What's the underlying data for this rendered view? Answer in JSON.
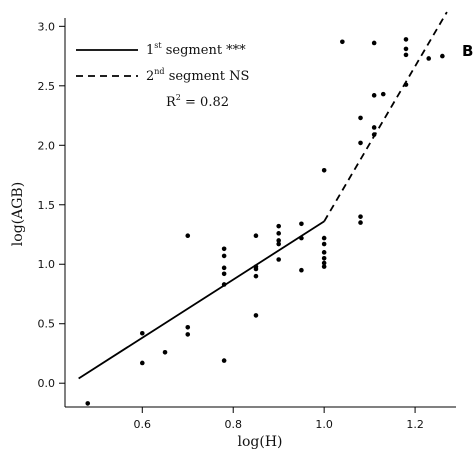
{
  "chart_data": {
    "type": "scatter",
    "panel_label": "B",
    "xlabel": "log(H)",
    "ylabel": "log(AGB)",
    "xlim": [
      0.43,
      1.29
    ],
    "ylim": [
      -0.2,
      3.07
    ],
    "x_ticks": [
      0.6,
      0.8,
      1.0,
      1.2
    ],
    "x_tick_labels": [
      "0.6",
      "0.8",
      "1.0",
      "1.2"
    ],
    "y_ticks": [
      0.0,
      0.5,
      1.0,
      1.5,
      2.0,
      2.5,
      3.0
    ],
    "y_tick_labels": [
      "0.0",
      "0.5",
      "1.0",
      "1.5",
      "2.0",
      "2.5",
      "3.0"
    ],
    "grid": false,
    "legend_position": "top-left",
    "legend": {
      "seg1_prefix": "1",
      "seg1_sup": "st",
      "seg1_suffix": " segment ***",
      "seg2_prefix": "2",
      "seg2_sup": "nd",
      "seg2_suffix": " segment NS",
      "r2_prefix": "R",
      "r2_sup": "2",
      "r2_suffix": " = 0.82"
    },
    "series": [
      {
        "style": "solid",
        "points": [
          [
            0.46,
            0.04
          ],
          [
            1.0,
            1.36
          ]
        ]
      },
      {
        "style": "dashed",
        "points": [
          [
            1.0,
            1.36
          ],
          [
            1.27,
            3.12
          ]
        ]
      }
    ],
    "points": [
      [
        0.48,
        -0.17
      ],
      [
        0.6,
        0.42
      ],
      [
        0.6,
        0.17
      ],
      [
        0.65,
        0.26
      ],
      [
        0.7,
        1.24
      ],
      [
        0.7,
        0.47
      ],
      [
        0.7,
        0.41
      ],
      [
        0.78,
        1.13
      ],
      [
        0.78,
        1.07
      ],
      [
        0.78,
        0.97
      ],
      [
        0.78,
        0.92
      ],
      [
        0.78,
        0.83
      ],
      [
        0.78,
        0.19
      ],
      [
        0.85,
        1.24
      ],
      [
        0.85,
        0.98
      ],
      [
        0.85,
        0.96
      ],
      [
        0.85,
        0.9
      ],
      [
        0.85,
        0.57
      ],
      [
        0.9,
        1.32
      ],
      [
        0.9,
        1.26
      ],
      [
        0.9,
        1.2
      ],
      [
        0.9,
        1.17
      ],
      [
        0.9,
        1.04
      ],
      [
        0.95,
        1.34
      ],
      [
        0.95,
        1.22
      ],
      [
        0.95,
        0.95
      ],
      [
        1.0,
        1.22
      ],
      [
        1.0,
        1.17
      ],
      [
        1.0,
        1.1
      ],
      [
        1.0,
        1.05
      ],
      [
        1.0,
        1.01
      ],
      [
        1.0,
        0.98
      ],
      [
        1.0,
        1.79
      ],
      [
        1.04,
        2.87
      ],
      [
        1.08,
        2.23
      ],
      [
        1.08,
        2.02
      ],
      [
        1.08,
        1.4
      ],
      [
        1.08,
        1.35
      ],
      [
        1.11,
        2.86
      ],
      [
        1.11,
        2.42
      ],
      [
        1.11,
        2.15
      ],
      [
        1.11,
        2.09
      ],
      [
        1.13,
        2.43
      ],
      [
        1.18,
        2.89
      ],
      [
        1.18,
        2.81
      ],
      [
        1.18,
        2.76
      ],
      [
        1.18,
        2.51
      ],
      [
        1.23,
        2.73
      ],
      [
        1.26,
        2.75
      ]
    ]
  }
}
